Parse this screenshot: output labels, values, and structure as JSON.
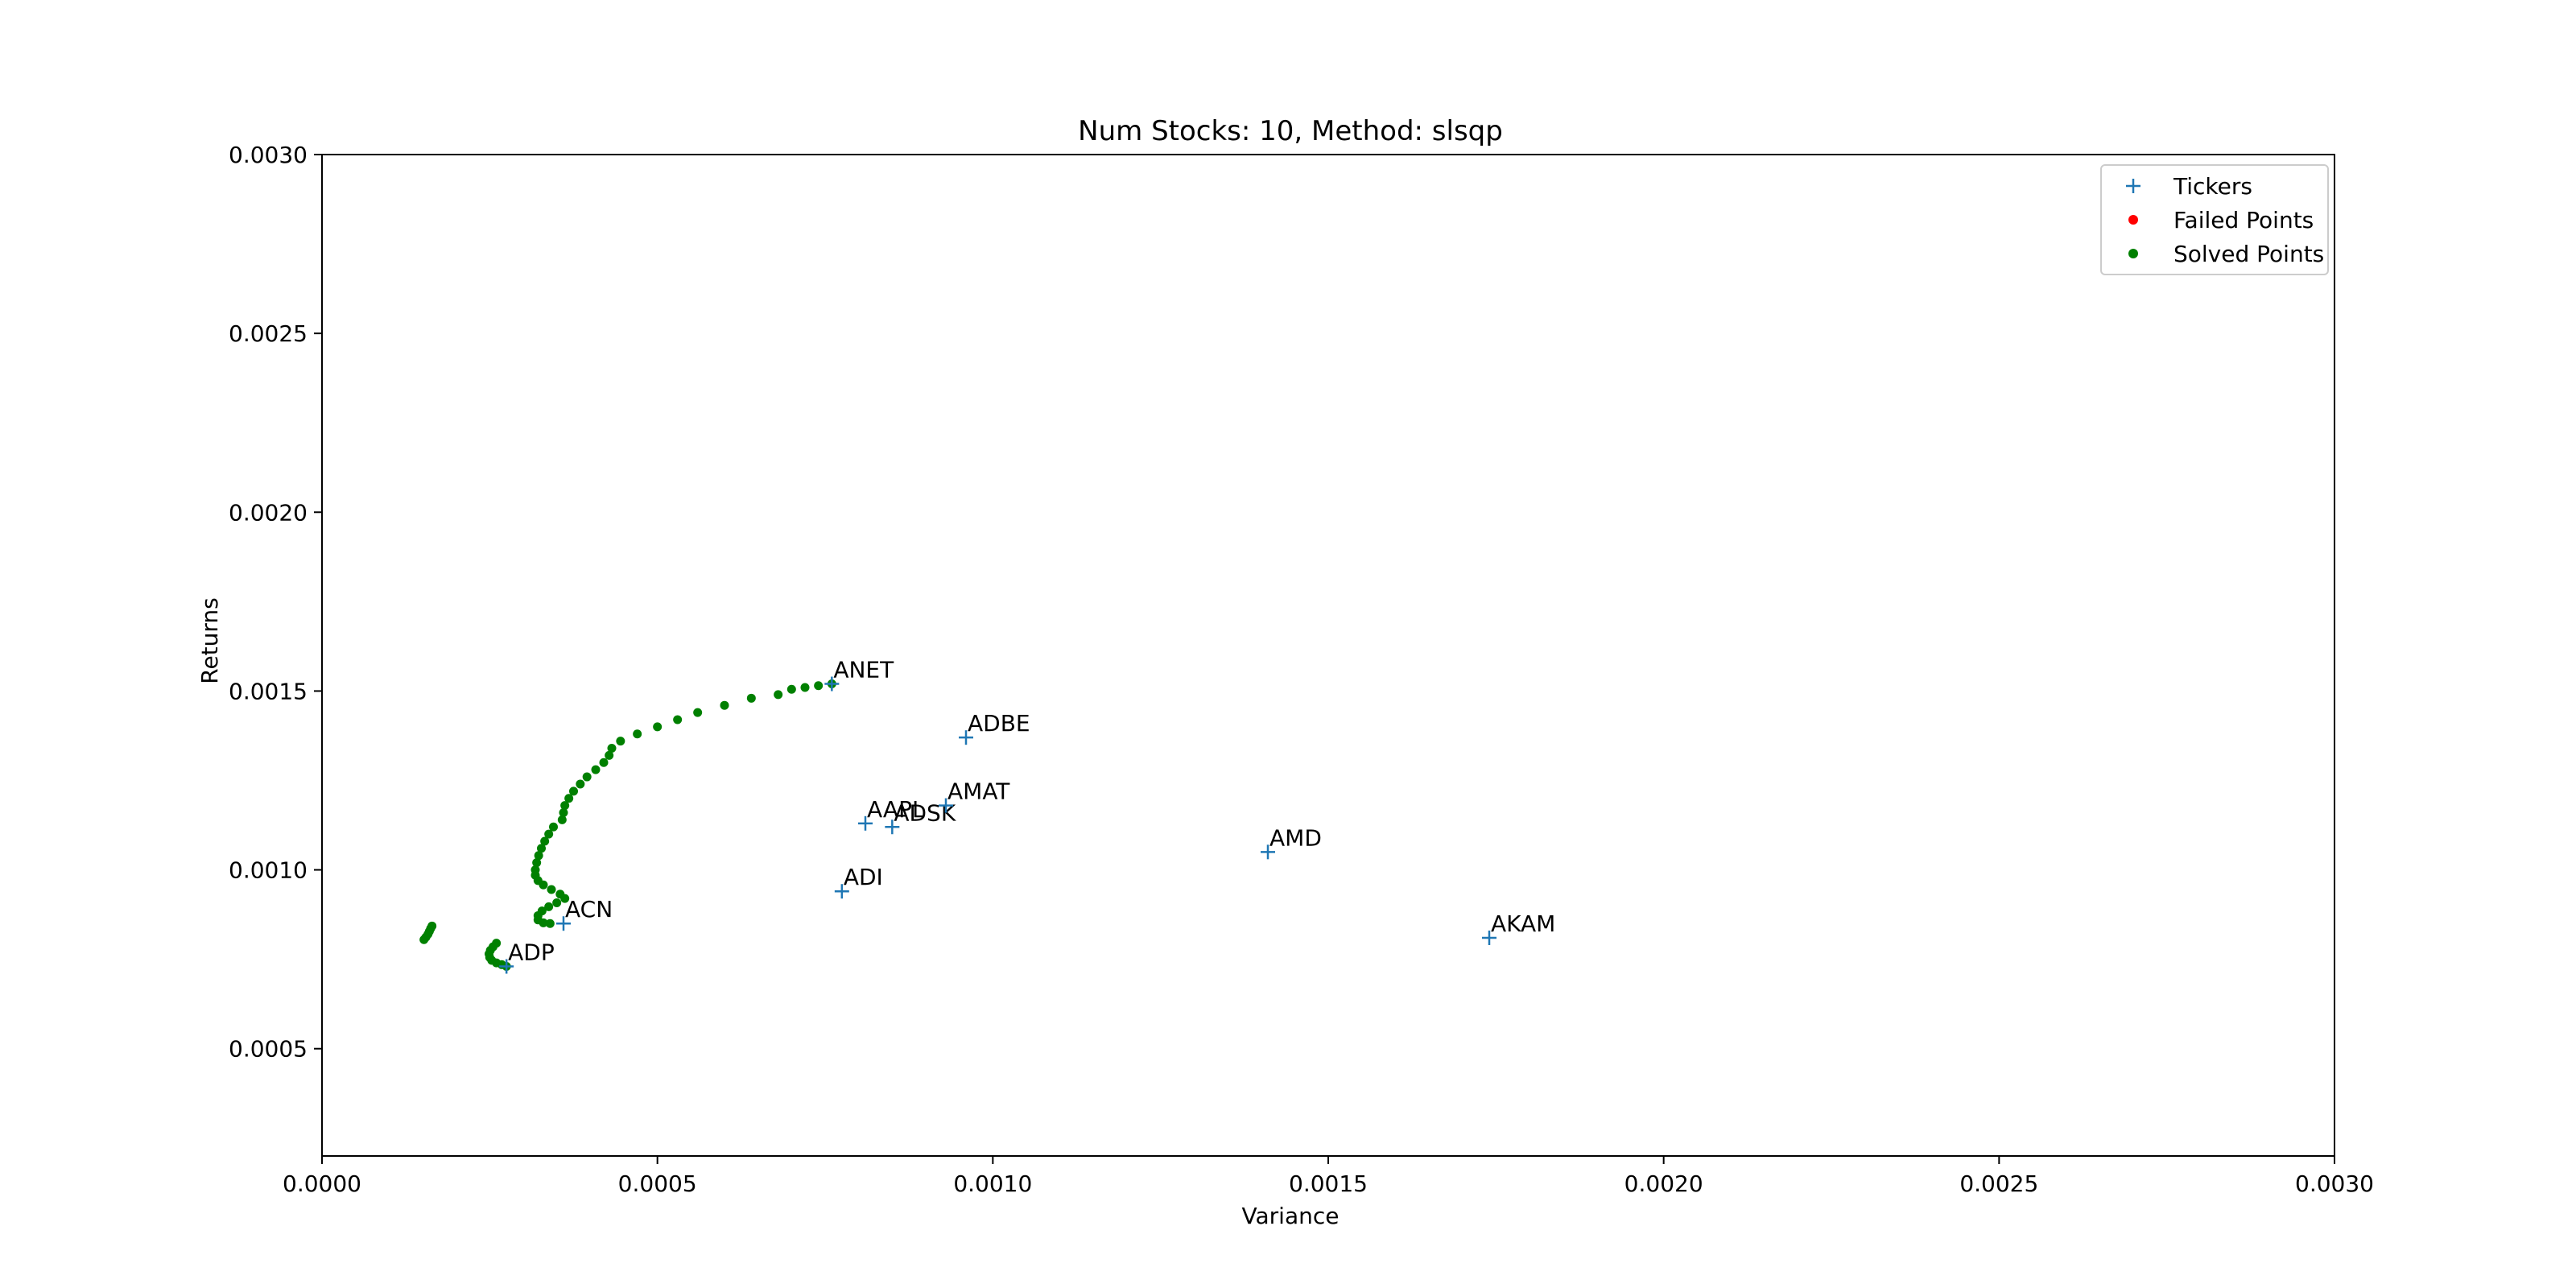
{
  "chart_data": {
    "type": "scatter",
    "title": "Num Stocks: 10, Method: slsqp",
    "xlabel": "Variance",
    "ylabel": "Returns",
    "xlim": [
      0.0,
      0.003
    ],
    "ylim": [
      0.0002,
      0.003
    ],
    "xticks": [
      0.0,
      0.0005,
      0.001,
      0.0015,
      0.002,
      0.0025,
      0.003
    ],
    "xtick_labels": [
      "0.0000",
      "0.0005",
      "0.0010",
      "0.0015",
      "0.0020",
      "0.0025",
      "0.0030"
    ],
    "yticks": [
      0.0005,
      0.001,
      0.0015,
      0.002,
      0.0025,
      0.003
    ],
    "ytick_labels": [
      "0.0005",
      "0.0010",
      "0.0015",
      "0.0020",
      "0.0025",
      "0.0030"
    ],
    "grid": false,
    "legend_position": "top-right",
    "series": [
      {
        "name": "Tickers",
        "marker": "plus",
        "color": "#1f77b4",
        "points": [
          {
            "label": "ANET",
            "x": 0.00076,
            "y": 0.00152
          },
          {
            "label": "ADBE",
            "x": 0.00096,
            "y": 0.00137
          },
          {
            "label": "AAPL",
            "x": 0.00081,
            "y": 0.00113
          },
          {
            "label": "ADSK",
            "x": 0.00085,
            "y": 0.00112
          },
          {
            "label": "AMAT",
            "x": 0.00093,
            "y": 0.00118
          },
          {
            "label": "AMD",
            "x": 0.00141,
            "y": 0.00105
          },
          {
            "label": "ADI",
            "x": 0.000775,
            "y": 0.00094
          },
          {
            "label": "AKAM",
            "x": 0.00174,
            "y": 0.00081
          },
          {
            "label": "ACN",
            "x": 0.00036,
            "y": 0.00085
          },
          {
            "label": "ADP",
            "x": 0.000275,
            "y": 0.00073
          }
        ]
      },
      {
        "name": "Failed Points",
        "marker": "dot",
        "color": "#ff0000",
        "points": []
      },
      {
        "name": "Solved Points",
        "marker": "dot",
        "color": "#008000",
        "points": [
          {
            "x": 0.000152,
            "y": 0.000805
          },
          {
            "x": 0.000155,
            "y": 0.000812
          },
          {
            "x": 0.000158,
            "y": 0.00082
          },
          {
            "x": 0.00016,
            "y": 0.000828
          },
          {
            "x": 0.000162,
            "y": 0.000836
          },
          {
            "x": 0.000164,
            "y": 0.000843
          },
          {
            "x": 0.000275,
            "y": 0.00073
          },
          {
            "x": 0.000268,
            "y": 0.000735
          },
          {
            "x": 0.00026,
            "y": 0.00074
          },
          {
            "x": 0.000253,
            "y": 0.000747
          },
          {
            "x": 0.00025,
            "y": 0.000755
          },
          {
            "x": 0.000249,
            "y": 0.000765
          },
          {
            "x": 0.000251,
            "y": 0.000775
          },
          {
            "x": 0.000255,
            "y": 0.000785
          },
          {
            "x": 0.00026,
            "y": 0.000795
          },
          {
            "x": 0.00034,
            "y": 0.00085
          },
          {
            "x": 0.00033,
            "y": 0.000852
          },
          {
            "x": 0.000322,
            "y": 0.00086
          },
          {
            "x": 0.000322,
            "y": 0.000872
          },
          {
            "x": 0.000328,
            "y": 0.000885
          },
          {
            "x": 0.000338,
            "y": 0.000897
          },
          {
            "x": 0.00035,
            "y": 0.000908
          },
          {
            "x": 0.000362,
            "y": 0.00092
          },
          {
            "x": 0.000355,
            "y": 0.000932
          },
          {
            "x": 0.000342,
            "y": 0.000945
          },
          {
            "x": 0.00033,
            "y": 0.000958
          },
          {
            "x": 0.000322,
            "y": 0.00097
          },
          {
            "x": 0.000318,
            "y": 0.000985
          },
          {
            "x": 0.000318,
            "y": 0.001
          },
          {
            "x": 0.00032,
            "y": 0.00102
          },
          {
            "x": 0.000323,
            "y": 0.00104
          },
          {
            "x": 0.000327,
            "y": 0.00106
          },
          {
            "x": 0.000332,
            "y": 0.00108
          },
          {
            "x": 0.000338,
            "y": 0.0011
          },
          {
            "x": 0.000345,
            "y": 0.00112
          },
          {
            "x": 0.000358,
            "y": 0.00114
          },
          {
            "x": 0.00036,
            "y": 0.00116
          },
          {
            "x": 0.000362,
            "y": 0.00118
          },
          {
            "x": 0.000368,
            "y": 0.0012
          },
          {
            "x": 0.000375,
            "y": 0.00122
          },
          {
            "x": 0.000385,
            "y": 0.00124
          },
          {
            "x": 0.000395,
            "y": 0.00126
          },
          {
            "x": 0.000408,
            "y": 0.00128
          },
          {
            "x": 0.00042,
            "y": 0.0013
          },
          {
            "x": 0.000428,
            "y": 0.00132
          },
          {
            "x": 0.000432,
            "y": 0.00134
          },
          {
            "x": 0.000445,
            "y": 0.00136
          },
          {
            "x": 0.00047,
            "y": 0.00138
          },
          {
            "x": 0.0005,
            "y": 0.0014
          },
          {
            "x": 0.00053,
            "y": 0.00142
          },
          {
            "x": 0.00056,
            "y": 0.00144
          },
          {
            "x": 0.0006,
            "y": 0.00146
          },
          {
            "x": 0.00064,
            "y": 0.00148
          },
          {
            "x": 0.00068,
            "y": 0.00149
          },
          {
            "x": 0.0007,
            "y": 0.001505
          },
          {
            "x": 0.00072,
            "y": 0.00151
          },
          {
            "x": 0.00074,
            "y": 0.001515
          },
          {
            "x": 0.00076,
            "y": 0.00152
          }
        ]
      }
    ]
  }
}
